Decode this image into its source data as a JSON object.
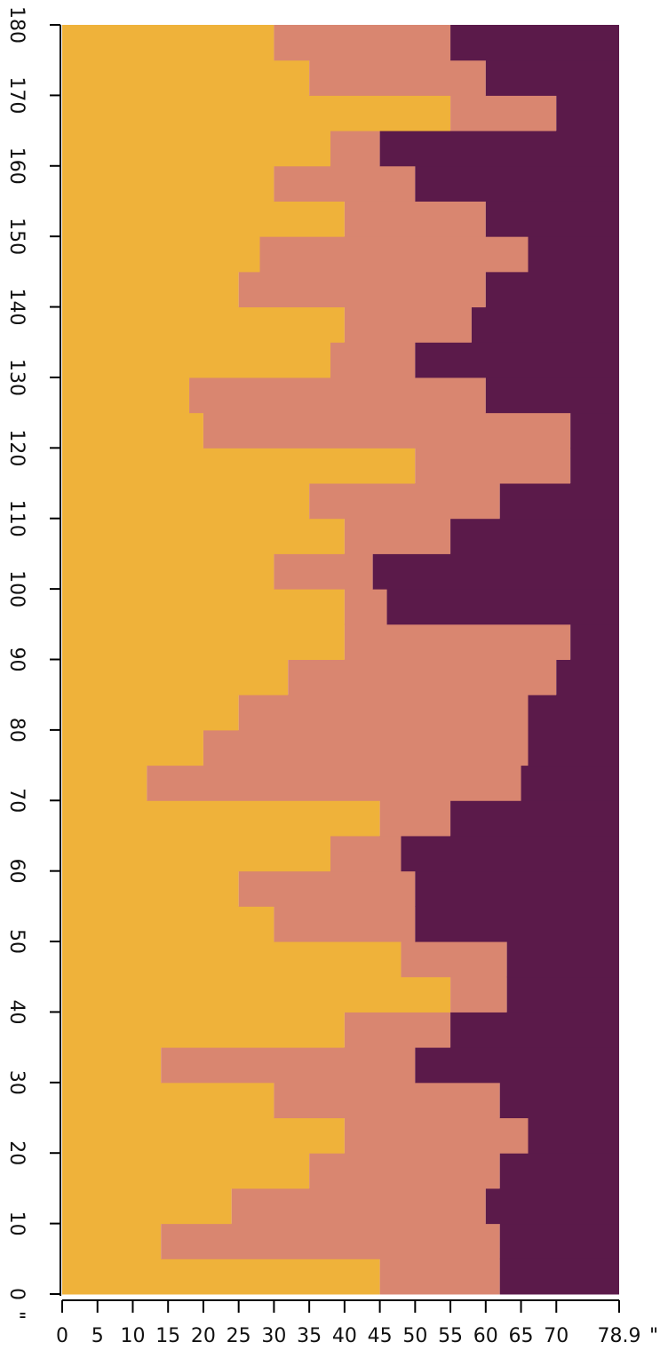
{
  "chart_data": {
    "type": "heatmap",
    "y_edges": [
      0,
      5,
      10,
      15,
      20,
      25,
      30,
      35,
      40,
      45,
      50,
      55,
      60,
      65,
      70,
      75,
      80,
      85,
      90,
      95,
      100,
      105,
      110,
      115,
      120,
      125,
      130,
      135,
      140,
      145,
      150,
      155,
      160,
      165,
      170,
      175,
      180
    ],
    "low_edge": [
      45,
      14,
      24,
      35,
      40,
      30,
      14,
      40,
      55,
      48,
      30,
      25,
      38,
      45,
      12,
      20,
      25,
      32,
      40,
      40,
      30,
      40,
      35,
      50,
      20,
      18,
      38,
      40,
      25,
      28,
      40,
      30,
      38,
      55,
      35,
      30
    ],
    "high_edge": [
      62,
      62,
      60,
      62,
      66,
      62,
      50,
      55,
      63,
      63,
      50,
      50,
      48,
      55,
      65,
      66,
      66,
      70,
      72,
      46,
      44,
      55,
      62,
      72,
      72,
      60,
      50,
      58,
      60,
      66,
      60,
      50,
      45,
      70,
      60,
      55
    ],
    "colors": [
      "#efb23a",
      "#d98670",
      "#5b1a4a"
    ],
    "xlim": [
      0,
      78.9
    ],
    "ylim": [
      0,
      180
    ],
    "xticks": [
      0,
      5,
      10,
      15,
      20,
      25,
      30,
      35,
      40,
      45,
      50,
      55,
      60,
      65,
      70,
      78.9
    ],
    "yticks": [
      0,
      10,
      20,
      30,
      40,
      50,
      60,
      70,
      80,
      90,
      100,
      110,
      120,
      130,
      140,
      150,
      160,
      170,
      180
    ],
    "x_unit": "\"",
    "y_unit": "\""
  }
}
